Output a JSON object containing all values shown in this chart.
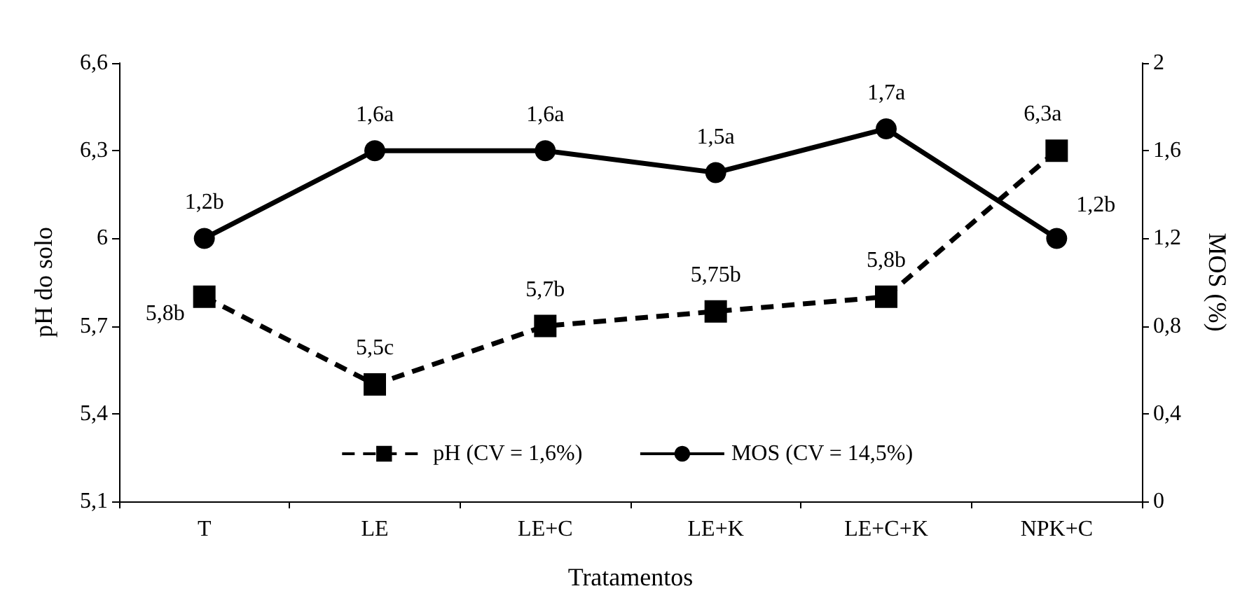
{
  "chart_data": {
    "type": "line",
    "xlabel": "Tratamentos",
    "ylabel": "pH do solo",
    "y2label": "MOS (%)",
    "categories": [
      "T",
      "LE",
      "LE+C",
      "LE+K",
      "LE+C+K",
      "NPK+C"
    ],
    "series": [
      {
        "name": "pH (CV = 1,6%)",
        "color": "#000000",
        "values": [
          5.8,
          5.5,
          5.7,
          5.75,
          5.8,
          6.3
        ],
        "value_labels": [
          "5,8b",
          "5,5c",
          "5,7b",
          "5,75b",
          "5,8b",
          "6,3a"
        ],
        "marker": "square",
        "line_style": "dashed"
      },
      {
        "name": "MOS (CV = 14,5%)",
        "color": "#000000",
        "axis": "y2",
        "values": [
          1.2,
          1.6,
          1.6,
          1.5,
          1.7,
          1.2
        ],
        "value_labels": [
          "1,2b",
          "1,6a",
          "1,6a",
          "1,5a",
          "1,7a",
          "1,2b"
        ],
        "marker": "circle",
        "line_style": "solid"
      }
    ],
    "ylim": [
      5.1,
      6.6
    ],
    "yticks": [
      {
        "value": 5.1,
        "label": "5,1"
      },
      {
        "value": 5.4,
        "label": "5,4"
      },
      {
        "value": 5.7,
        "label": "5,7"
      },
      6,
      {
        "value": 6.3,
        "label": "6,3"
      },
      {
        "value": 6.6,
        "label": "6,6"
      }
    ],
    "y2lim": [
      0,
      2
    ],
    "y2ticks": [
      0,
      {
        "value": 0.4,
        "label": "0,4"
      },
      {
        "value": 0.8,
        "label": "0,8"
      },
      {
        "value": 1.2,
        "label": "1,2"
      },
      {
        "value": 1.6,
        "label": "1,6"
      },
      2
    ],
    "grid": false,
    "legend": "bottom"
  }
}
